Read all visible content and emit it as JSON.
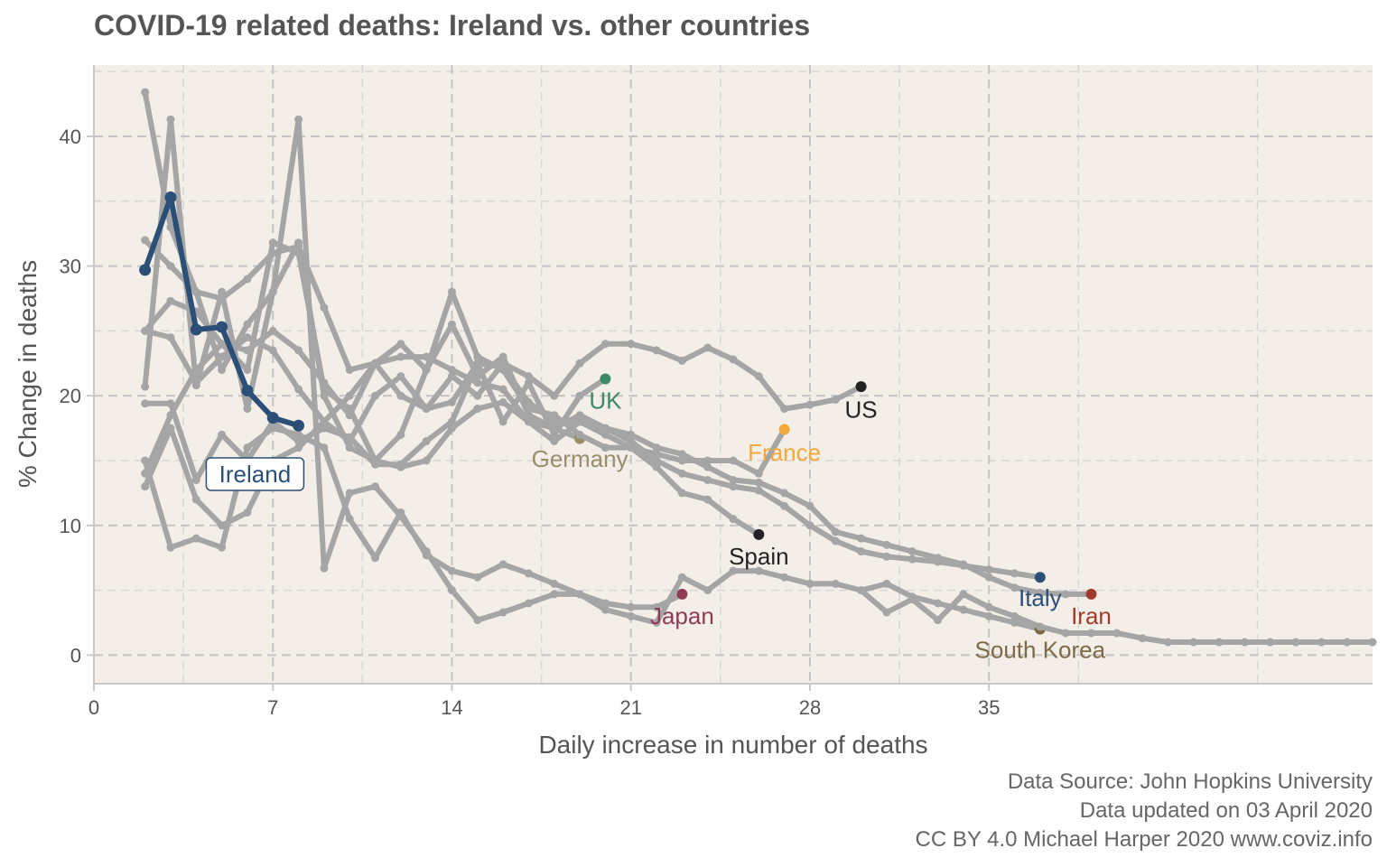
{
  "chart_data": {
    "type": "line",
    "title": "COVID-19 related deaths: Ireland vs. other countries",
    "xlabel": "Daily increase in number of deaths",
    "ylabel": "% Change in deaths",
    "xlim": [
      0,
      50
    ],
    "ylim": [
      -2.2,
      45.5
    ],
    "xticks": [
      0,
      7,
      14,
      21,
      28,
      35
    ],
    "xtick_labels": [
      "0",
      "7",
      "14",
      "21",
      "28",
      "35"
    ],
    "yticks": [
      0,
      10,
      20,
      30,
      40
    ],
    "ytick_labels": [
      "0",
      "10",
      "20",
      "30",
      "40"
    ],
    "grid": true,
    "background": "#F4EEE8",
    "background_series_color": "#A5A5A5",
    "highlight": "Ireland",
    "series": [
      {
        "name": "Ireland",
        "color": "#2C4F78",
        "x": [
          2,
          3,
          4,
          5,
          6,
          7,
          8
        ],
        "y": [
          29.7,
          35.3,
          25.1,
          25.3,
          20.4,
          18.3,
          17.7
        ]
      },
      {
        "name": "US",
        "color": "#222222",
        "x": [
          2,
          3,
          4,
          5,
          6,
          7,
          8,
          9,
          10,
          11,
          12,
          13,
          14,
          15,
          16,
          17,
          18,
          19,
          20,
          21,
          22,
          23,
          24,
          25,
          26,
          27,
          28,
          29,
          30
        ],
        "y": [
          32.0,
          30.0,
          28.0,
          27.5,
          29.0,
          31.0,
          31.5,
          26.8,
          22.0,
          22.5,
          20.0,
          19.0,
          21.5,
          20.0,
          22.5,
          21.5,
          20.0,
          22.5,
          24.0,
          24.0,
          23.5,
          22.7,
          23.7,
          22.8,
          21.5,
          19.0,
          19.3,
          19.7,
          20.7
        ]
      },
      {
        "name": "UK",
        "color": "#3E8A67",
        "x": [
          2,
          3,
          4,
          5,
          6,
          7,
          8,
          9,
          10,
          11,
          12,
          13,
          14,
          15,
          16,
          17,
          18,
          19,
          20
        ],
        "y": [
          25.0,
          24.5,
          21.0,
          23.0,
          24.5,
          23.5,
          20.5,
          18.0,
          16.5,
          20.0,
          21.5,
          19.0,
          19.5,
          22.5,
          18.0,
          21.0,
          17.0,
          20.0,
          21.3
        ]
      },
      {
        "name": "Germany",
        "color": "#9A8E6A",
        "x": [
          2,
          3,
          4,
          5,
          6,
          7,
          8,
          9,
          10,
          11,
          12,
          13,
          14,
          15,
          16,
          17,
          18,
          19
        ],
        "y": [
          13.0,
          17.5,
          12.0,
          10.0,
          11.0,
          15.0,
          16.0,
          18.0,
          20.0,
          22.5,
          24.0,
          22.0,
          25.5,
          21.5,
          23.0,
          18.5,
          17.5,
          16.7
        ]
      },
      {
        "name": "France",
        "color": "#F4A83A",
        "x": [
          2,
          3,
          4,
          5,
          6,
          7,
          8,
          9,
          10,
          11,
          12,
          13,
          14,
          15,
          16,
          17,
          18,
          19,
          20,
          21,
          22,
          23,
          24,
          25,
          26,
          27
        ],
        "y": [
          14.0,
          18.5,
          22.0,
          24.0,
          22.0,
          31.8,
          31.0,
          20.5,
          19.0,
          15.0,
          17.0,
          22.0,
          28.0,
          23.0,
          22.0,
          19.0,
          18.5,
          17.0,
          16.0,
          16.0,
          15.5,
          15.0,
          15.0,
          15.0,
          14.0,
          17.4
        ]
      },
      {
        "name": "Spain",
        "color": "#222222",
        "x": [
          2,
          3,
          4,
          5,
          6,
          7,
          8,
          9,
          10,
          11,
          12,
          13,
          14,
          15,
          16,
          17,
          18,
          19,
          20,
          21,
          22,
          23,
          24,
          25,
          26
        ],
        "y": [
          25.0,
          27.3,
          26.5,
          24.0,
          23.5,
          25.0,
          23.5,
          21.0,
          18.5,
          22.5,
          23.0,
          23.0,
          22.0,
          21.0,
          20.5,
          18.0,
          16.5,
          18.0,
          17.0,
          16.0,
          14.5,
          12.5,
          12.0,
          10.5,
          9.3
        ]
      },
      {
        "name": "Italy",
        "color": "#2C4F78",
        "x": [
          2,
          3,
          4,
          5,
          6,
          7,
          8,
          9,
          10,
          11,
          12,
          13,
          14,
          15,
          16,
          17,
          18,
          19,
          20,
          21,
          22,
          23,
          24,
          25,
          26,
          27,
          28,
          29,
          30,
          31,
          32,
          33,
          34,
          35,
          36,
          37
        ],
        "y": [
          43.4,
          33.0,
          28.0,
          22.0,
          25.5,
          28.0,
          31.8,
          20.0,
          16.0,
          15.0,
          14.5,
          15.0,
          17.5,
          19.0,
          19.5,
          18.0,
          17.5,
          18.5,
          17.5,
          16.5,
          15.0,
          14.0,
          13.5,
          13.0,
          12.7,
          11.5,
          10.0,
          8.8,
          8.0,
          7.6,
          7.4,
          7.2,
          6.9,
          6.6,
          6.3,
          6.0
        ]
      },
      {
        "name": "Iran",
        "color": "#A23A2B",
        "x": [
          2,
          3,
          4,
          5,
          6,
          7,
          8,
          9,
          10,
          11,
          12,
          13,
          14,
          15,
          16,
          17,
          18,
          19,
          20,
          21,
          22,
          23,
          24,
          25,
          26,
          27,
          28,
          29,
          30,
          31,
          32,
          33,
          34,
          35,
          36,
          37,
          38,
          39
        ],
        "y": [
          19.4,
          19.4,
          13.5,
          17.0,
          15.0,
          18.0,
          16.5,
          17.5,
          16.8,
          14.7,
          14.7,
          16.5,
          18.0,
          22.5,
          22.2,
          19.5,
          18.0,
          18.0,
          17.5,
          17.0,
          16.0,
          15.5,
          14.5,
          13.5,
          13.3,
          12.5,
          11.5,
          9.5,
          9.0,
          8.5,
          8.0,
          7.5,
          7.0,
          6.0,
          5.2,
          4.8,
          4.7,
          4.7
        ]
      },
      {
        "name": "South Korea",
        "color": "#7D6B46",
        "x": [
          2,
          3,
          4,
          5,
          6,
          7,
          8,
          9,
          10,
          11,
          12,
          13,
          14,
          15,
          16,
          17,
          18,
          19,
          20,
          21,
          22,
          23,
          24,
          25,
          26,
          27,
          28,
          29,
          30,
          31,
          32,
          33,
          34,
          35,
          36,
          37
        ],
        "y": [
          15.0,
          8.3,
          9.0,
          8.3,
          16.0,
          17.5,
          17.0,
          16.0,
          10.5,
          7.5,
          11.0,
          7.7,
          6.5,
          6.0,
          7.0,
          6.3,
          5.5,
          4.7,
          3.5,
          3.0,
          2.5,
          6.0,
          5.0,
          6.5,
          6.5,
          6.0,
          5.5,
          5.5,
          5.0,
          5.5,
          4.5,
          4.0,
          3.5,
          3.0,
          2.5,
          2.0
        ]
      },
      {
        "name": "Japan",
        "color": "#8E3B56",
        "x": [
          2,
          3,
          4,
          5,
          6,
          7,
          8,
          9,
          10,
          11,
          12,
          13,
          14,
          15,
          16,
          17,
          18,
          19,
          20,
          21,
          22,
          23
        ],
        "y": [
          20.7,
          41.3,
          20.8,
          28.0,
          19.0,
          28.0,
          41.3,
          6.7,
          12.5,
          13.0,
          10.7,
          8.0,
          5.0,
          2.7,
          3.3,
          4.0,
          4.7,
          4.7,
          4.0,
          3.7,
          3.7,
          4.7
        ]
      },
      {
        "name": "",
        "color": "#A5A5A5",
        "x": [
          30,
          31,
          32,
          33,
          34,
          35,
          36,
          37,
          38,
          39,
          40,
          41,
          42,
          43,
          44,
          45,
          46,
          47,
          48,
          49,
          50
        ],
        "y": [
          5.0,
          3.3,
          4.3,
          2.7,
          4.7,
          3.7,
          3.0,
          2.2,
          1.7,
          1.7,
          1.7,
          1.3,
          1.0,
          1.0,
          1.0,
          1.0,
          1.0,
          1.0,
          1.0,
          1.0,
          1.0
        ]
      }
    ],
    "labels": [
      {
        "text": "Ireland",
        "color": "#2C4F78",
        "boxed": true,
        "x": 8,
        "y": 13.4
      },
      {
        "text": "US",
        "color": "#222222",
        "x": 30,
        "y": 18.3
      },
      {
        "text": "UK",
        "color": "#3E8A67",
        "x": 20,
        "y": 19.0
      },
      {
        "text": "Germany",
        "color": "#9A8E6A",
        "x": 19,
        "y": 14.5
      },
      {
        "text": "France",
        "color": "#F4A83A",
        "x": 27,
        "y": 15.0
      },
      {
        "text": "Spain",
        "color": "#222222",
        "x": 26,
        "y": 7.0
      },
      {
        "text": "Italy",
        "color": "#2C4F78",
        "x": 37,
        "y": 3.8
      },
      {
        "text": "Iran",
        "color": "#A23A2B",
        "x": 39,
        "y": 2.4
      },
      {
        "text": "Japan",
        "color": "#8E3B56",
        "x": 23,
        "y": 2.4
      },
      {
        "text": "South Korea",
        "color": "#7D6B46",
        "x": 37,
        "y": -0.2
      }
    ]
  },
  "captions": {
    "source": "Data Source: John Hopkins University",
    "updated": "Data updated on 03 April 2020",
    "license": "CC BY 4.0 Michael Harper 2020 www.coviz.info"
  }
}
